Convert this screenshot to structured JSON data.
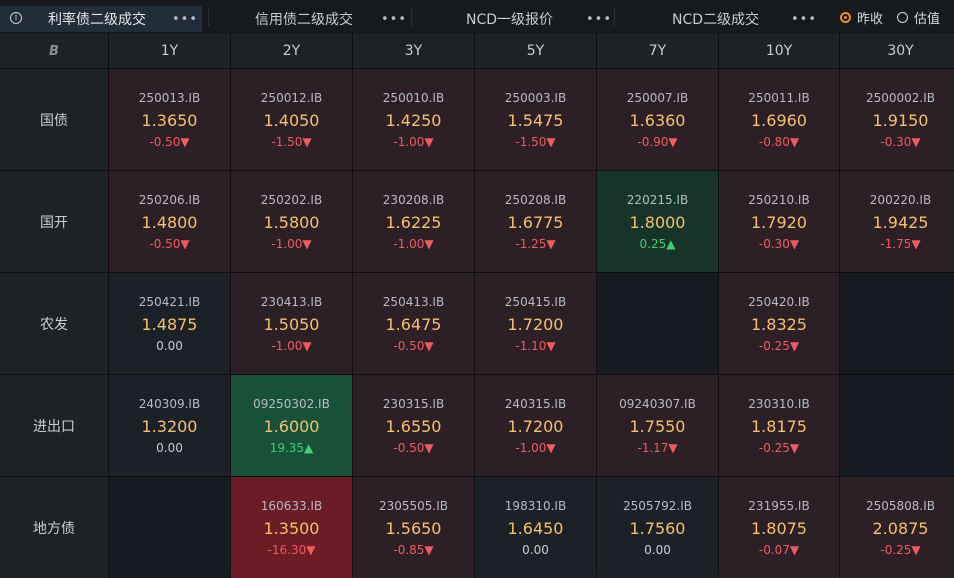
{
  "tabs": [
    {
      "label": "利率债二级成交",
      "menu": "•••"
    },
    {
      "label": "信用债二级成交",
      "menu": "•••"
    },
    {
      "label": "NCD一级报价",
      "menu": "•••"
    },
    {
      "label": "NCD二级成交",
      "menu": "•••"
    }
  ],
  "info_glyph": "i",
  "radio": {
    "options": [
      {
        "label": "昨收",
        "checked": true
      },
      {
        "label": "估值",
        "checked": false
      }
    ]
  },
  "grid": {
    "corner_glyph": "B",
    "columns": [
      "1Y",
      "2Y",
      "3Y",
      "5Y",
      "7Y",
      "10Y",
      "30Y"
    ],
    "rows": [
      {
        "label": "国债",
        "cells": [
          {
            "code": "250013.IB",
            "yield": "1.3650",
            "change": "-0.50▼",
            "dir": "down"
          },
          {
            "code": "250012.IB",
            "yield": "1.4050",
            "change": "-1.50▼",
            "dir": "down"
          },
          {
            "code": "250010.IB",
            "yield": "1.4250",
            "change": "-1.00▼",
            "dir": "down"
          },
          {
            "code": "250003.IB",
            "yield": "1.5475",
            "change": "-1.50▼",
            "dir": "down"
          },
          {
            "code": "250007.IB",
            "yield": "1.6360",
            "change": "-0.90▼",
            "dir": "down"
          },
          {
            "code": "250011.IB",
            "yield": "1.6960",
            "change": "-0.80▼",
            "dir": "down"
          },
          {
            "code": "2500002.IB",
            "yield": "1.9150",
            "change": "-0.30▼",
            "dir": "down"
          }
        ]
      },
      {
        "label": "国开",
        "cells": [
          {
            "code": "250206.IB",
            "yield": "1.4800",
            "change": "-0.50▼",
            "dir": "down"
          },
          {
            "code": "250202.IB",
            "yield": "1.5800",
            "change": "-1.00▼",
            "dir": "down"
          },
          {
            "code": "230208.IB",
            "yield": "1.6225",
            "change": "-1.00▼",
            "dir": "down"
          },
          {
            "code": "250208.IB",
            "yield": "1.6775",
            "change": "-1.25▼",
            "dir": "down"
          },
          {
            "code": "220215.IB",
            "yield": "1.8000",
            "change": "0.25▲",
            "dir": "up"
          },
          {
            "code": "250210.IB",
            "yield": "1.7920",
            "change": "-0.30▼",
            "dir": "down"
          },
          {
            "code": "200220.IB",
            "yield": "1.9425",
            "change": "-1.75▼",
            "dir": "down"
          }
        ]
      },
      {
        "label": "农发",
        "cells": [
          {
            "code": "250421.IB",
            "yield": "1.4875",
            "change": "0.00",
            "dir": "flat"
          },
          {
            "code": "230413.IB",
            "yield": "1.5050",
            "change": "-1.00▼",
            "dir": "down"
          },
          {
            "code": "250413.IB",
            "yield": "1.6475",
            "change": "-0.50▼",
            "dir": "down"
          },
          {
            "code": "250415.IB",
            "yield": "1.7200",
            "change": "-1.10▼",
            "dir": "down"
          },
          null,
          {
            "code": "250420.IB",
            "yield": "1.8325",
            "change": "-0.25▼",
            "dir": "down"
          },
          null
        ]
      },
      {
        "label": "进出口",
        "cells": [
          {
            "code": "240309.IB",
            "yield": "1.3200",
            "change": "0.00",
            "dir": "flat"
          },
          {
            "code": "09250302.IB",
            "yield": "1.6000",
            "change": "19.35▲",
            "dir": "up-strong"
          },
          {
            "code": "230315.IB",
            "yield": "1.6550",
            "change": "-0.50▼",
            "dir": "down"
          },
          {
            "code": "240315.IB",
            "yield": "1.7200",
            "change": "-1.00▼",
            "dir": "down"
          },
          {
            "code": "09240307.IB",
            "yield": "1.7550",
            "change": "-1.17▼",
            "dir": "down"
          },
          {
            "code": "230310.IB",
            "yield": "1.8175",
            "change": "-0.25▼",
            "dir": "down"
          },
          null
        ]
      },
      {
        "label": "地方债",
        "cells": [
          null,
          {
            "code": "160633.IB",
            "yield": "1.3500",
            "change": "-16.30▼",
            "dir": "down-strong"
          },
          {
            "code": "2305505.IB",
            "yield": "1.5650",
            "change": "-0.85▼",
            "dir": "down"
          },
          {
            "code": "198310.IB",
            "yield": "1.6450",
            "change": "0.00",
            "dir": "flat"
          },
          {
            "code": "2505792.IB",
            "yield": "1.7560",
            "change": "0.00",
            "dir": "flat"
          },
          {
            "code": "231955.IB",
            "yield": "1.8075",
            "change": "-0.07▼",
            "dir": "down"
          },
          {
            "code": "2505808.IB",
            "yield": "2.0875",
            "change": "-0.25▼",
            "dir": "down"
          }
        ]
      }
    ]
  }
}
